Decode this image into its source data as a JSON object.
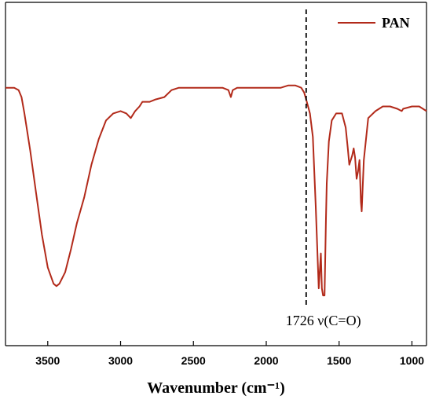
{
  "chart_data": {
    "type": "line",
    "title": "",
    "xlabel": "Wavenumber (cm⁻¹)",
    "ylabel": "",
    "xlim": [
      3790,
      900
    ],
    "ylim": [
      0,
      100
    ],
    "x_reversed": true,
    "grid": false,
    "legend_position": "top-right",
    "x_ticks": [
      3500,
      3000,
      2500,
      2000,
      1500,
      1000
    ],
    "x_tick_labels": [
      "3500",
      "3000",
      "2500",
      "2000",
      "1500",
      "1000"
    ],
    "series": [
      {
        "name": "PAN",
        "color": "#b22a1a",
        "x": [
          3790,
          3730,
          3700,
          3680,
          3660,
          3620,
          3580,
          3540,
          3500,
          3460,
          3440,
          3420,
          3380,
          3340,
          3300,
          3250,
          3200,
          3150,
          3100,
          3050,
          3000,
          2960,
          2930,
          2900,
          2870,
          2850,
          2800,
          2760,
          2700,
          2650,
          2600,
          2500,
          2400,
          2300,
          2260,
          2243,
          2230,
          2200,
          2100,
          2000,
          1900,
          1850,
          1800,
          1760,
          1740,
          1726,
          1700,
          1680,
          1660,
          1640,
          1630,
          1625,
          1618,
          1610,
          1600,
          1590,
          1585,
          1570,
          1550,
          1520,
          1480,
          1455,
          1440,
          1430,
          1410,
          1400,
          1390,
          1380,
          1370,
          1360,
          1350,
          1345,
          1330,
          1300,
          1250,
          1200,
          1150,
          1100,
          1070,
          1060,
          1000,
          950,
          900
        ],
        "y": [
          91,
          91,
          90,
          87,
          80,
          64,
          46,
          28,
          14,
          7,
          6,
          7,
          12,
          22,
          33,
          44,
          58,
          69,
          77,
          80,
          81,
          80,
          78,
          81,
          83,
          85,
          85,
          86,
          87,
          90,
          91,
          91,
          91,
          91,
          90,
          87,
          90,
          91,
          91,
          91,
          91,
          92,
          92,
          91,
          89,
          86,
          80,
          70,
          40,
          5,
          15,
          20,
          5,
          2,
          2,
          35,
          50,
          68,
          77,
          80,
          80,
          74,
          65,
          58,
          62,
          65,
          61,
          52,
          55,
          60,
          42,
          38,
          60,
          78,
          81,
          83,
          83,
          82,
          81,
          82,
          83,
          83,
          81
        ]
      }
    ],
    "annotations": [
      {
        "text": "1726  ν(C=O)",
        "x": 1726,
        "style": "dashed-vertical-line"
      }
    ]
  }
}
